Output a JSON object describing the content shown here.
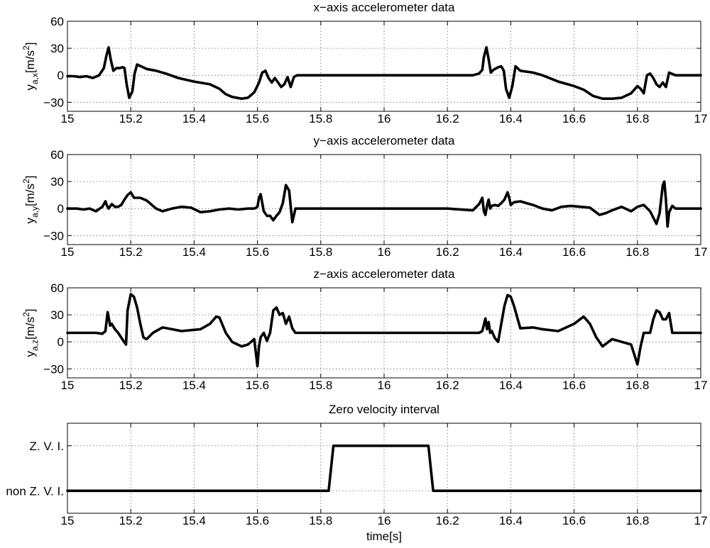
{
  "chart_data": [
    {
      "type": "line",
      "title": "x−axis accelerometer data",
      "ylabel_main": "y",
      "ylabel_sub": "a,x",
      "ylabel_unit": "[m/s",
      "ylabel_exp": "2",
      "ylabel_close": "]",
      "xlim": [
        15,
        17
      ],
      "ylim": [
        -40,
        60
      ],
      "grid": true,
      "xticks": [
        15,
        15.2,
        15.4,
        15.6,
        15.8,
        16,
        16.2,
        16.4,
        16.6,
        16.8,
        17
      ],
      "xtick_labels": [
        "15",
        "15.2",
        "15.4",
        "15.6",
        "15.8",
        "16",
        "16.2",
        "16.4",
        "16.6",
        "16.8",
        "17"
      ],
      "yticks": [
        -30,
        0,
        30,
        60
      ],
      "ytick_labels": [
        "−30",
        "0",
        "30",
        "60"
      ],
      "series": [
        {
          "x": [
            15,
            15.02,
            15.04,
            15.06,
            15.08,
            15.1,
            15.115,
            15.123,
            15.13,
            15.137,
            15.145,
            15.155,
            15.165,
            15.175,
            15.18,
            15.187,
            15.195,
            15.205,
            15.212,
            15.22,
            15.25,
            15.28,
            15.31,
            15.35,
            15.4,
            15.45,
            15.48,
            15.5,
            15.52,
            15.55,
            15.57,
            15.59,
            15.605,
            15.615,
            15.625,
            15.635,
            15.645,
            15.655,
            15.665,
            15.675,
            15.685,
            15.695,
            15.705,
            15.715,
            15.725,
            15.75,
            15.8,
            15.9,
            16,
            16.1,
            16.2,
            16.28,
            16.3,
            16.31,
            16.315,
            16.323,
            16.33,
            16.337,
            16.345,
            16.36,
            16.37,
            16.378,
            16.385,
            16.395,
            16.405,
            16.415,
            16.43,
            16.47,
            16.5,
            16.55,
            16.6,
            16.63,
            16.66,
            16.69,
            16.72,
            16.75,
            16.78,
            16.8,
            16.81,
            16.82,
            16.83,
            16.84,
            16.85,
            16.86,
            16.87,
            16.88,
            16.89,
            16.9,
            16.92,
            16.95,
            17
          ],
          "y": [
            -1,
            -1,
            -2,
            -1,
            -3,
            0,
            8,
            22,
            31,
            17,
            5,
            8,
            8,
            9,
            8,
            -10,
            -25,
            -18,
            2,
            12,
            7,
            5,
            2,
            -3,
            -7,
            -10,
            -15,
            -21,
            -24,
            -26,
            -25,
            -19,
            -8,
            3,
            5,
            -3,
            -8,
            -3,
            -8,
            -13,
            -10,
            -2,
            -13,
            -2,
            0,
            0,
            0,
            0,
            0,
            0,
            0,
            0,
            2,
            6,
            20,
            31,
            18,
            3,
            6,
            9,
            10,
            5,
            -15,
            -25,
            -12,
            10,
            5,
            3,
            0,
            -7,
            -12,
            -16,
            -23,
            -26,
            -26,
            -25,
            -20,
            -12,
            -15,
            -20,
            0,
            2,
            -3,
            -10,
            -13,
            -8,
            -13,
            3,
            0,
            0,
            0
          ]
        }
      ]
    },
    {
      "type": "line",
      "title": "y−axis accelerometer data",
      "ylabel_main": "y",
      "ylabel_sub": "a,y",
      "ylabel_unit": "[m/s",
      "ylabel_exp": "2",
      "ylabel_close": "]",
      "xlim": [
        15,
        17
      ],
      "ylim": [
        -40,
        60
      ],
      "grid": true,
      "xticks": [
        15,
        15.2,
        15.4,
        15.6,
        15.8,
        16,
        16.2,
        16.4,
        16.6,
        16.8,
        17
      ],
      "xtick_labels": [
        "15",
        "15.2",
        "15.4",
        "15.6",
        "15.8",
        "16",
        "16.2",
        "16.4",
        "16.6",
        "16.8",
        "17"
      ],
      "yticks": [
        -30,
        0,
        30,
        60
      ],
      "ytick_labels": [
        "−30",
        "0",
        "30",
        "60"
      ],
      "series": [
        {
          "x": [
            15,
            15.03,
            15.05,
            15.07,
            15.09,
            15.11,
            15.12,
            15.125,
            15.13,
            15.14,
            15.15,
            15.16,
            15.17,
            15.18,
            15.19,
            15.2,
            15.21,
            15.23,
            15.25,
            15.28,
            15.3,
            15.33,
            15.36,
            15.39,
            15.42,
            15.45,
            15.48,
            15.51,
            15.54,
            15.57,
            15.59,
            15.6,
            15.605,
            15.61,
            15.62,
            15.63,
            15.64,
            15.65,
            15.66,
            15.67,
            15.68,
            15.69,
            15.7,
            15.71,
            15.72,
            15.73,
            15.75,
            15.8,
            15.9,
            16,
            16.1,
            16.2,
            16.28,
            16.3,
            16.31,
            16.315,
            16.32,
            16.325,
            16.33,
            16.335,
            16.34,
            16.35,
            16.36,
            16.37,
            16.38,
            16.39,
            16.395,
            16.4,
            16.41,
            16.43,
            16.47,
            16.5,
            16.53,
            16.56,
            16.59,
            16.62,
            16.65,
            16.68,
            16.7,
            16.72,
            16.75,
            16.78,
            16.8,
            16.82,
            16.84,
            16.86,
            16.87,
            16.88,
            16.885,
            16.89,
            16.895,
            16.9,
            16.91,
            16.92,
            16.95,
            17
          ],
          "y": [
            0,
            0,
            -1,
            0,
            -3,
            2,
            8,
            3,
            0,
            5,
            2,
            2,
            4,
            10,
            15,
            18,
            12,
            12,
            9,
            0,
            -3,
            0,
            2,
            1,
            -4,
            -3,
            -1,
            0,
            -1,
            0,
            0,
            2,
            12,
            16,
            -3,
            -8,
            -8,
            -13,
            -8,
            -4,
            6,
            26,
            20,
            -15,
            0,
            0,
            0,
            0,
            0,
            0,
            0,
            0,
            -2,
            5,
            12,
            -3,
            -7,
            3,
            10,
            0,
            3,
            4,
            3,
            6,
            10,
            18,
            12,
            4,
            7,
            8,
            4,
            0,
            -2,
            2,
            3,
            2,
            1,
            -7,
            -5,
            -2,
            2,
            -3,
            2,
            4,
            -3,
            -17,
            -5,
            26,
            30,
            10,
            -20,
            -4,
            3,
            0,
            0,
            0
          ]
        }
      ]
    },
    {
      "type": "line",
      "title": "z−axis accelerometer data",
      "ylabel_main": "y",
      "ylabel_sub": "a,z",
      "ylabel_unit": "[m/s",
      "ylabel_exp": "2",
      "ylabel_close": "]",
      "xlim": [
        15,
        17
      ],
      "ylim": [
        -40,
        60
      ],
      "grid": true,
      "xticks": [
        15,
        15.2,
        15.4,
        15.6,
        15.8,
        16,
        16.2,
        16.4,
        16.6,
        16.8,
        17
      ],
      "xtick_labels": [
        "15",
        "15.2",
        "15.4",
        "15.6",
        "15.8",
        "16",
        "16.2",
        "16.4",
        "16.6",
        "16.8",
        "17"
      ],
      "yticks": [
        -30,
        0,
        30,
        60
      ],
      "ytick_labels": [
        "−30",
        "0",
        "30",
        "60"
      ],
      "series": [
        {
          "x": [
            15,
            15.03,
            15.06,
            15.09,
            15.11,
            15.12,
            15.127,
            15.135,
            15.14,
            15.15,
            15.16,
            15.175,
            15.185,
            15.19,
            15.2,
            15.21,
            15.22,
            15.23,
            15.24,
            15.25,
            15.27,
            15.3,
            15.33,
            15.36,
            15.39,
            15.42,
            15.45,
            15.47,
            15.48,
            15.5,
            15.52,
            15.55,
            15.57,
            15.59,
            15.6,
            15.605,
            15.61,
            15.62,
            15.63,
            15.64,
            15.65,
            15.66,
            15.67,
            15.68,
            15.69,
            15.7,
            15.71,
            15.72,
            15.73,
            15.75,
            15.8,
            15.9,
            16,
            16.1,
            16.2,
            16.28,
            16.3,
            16.31,
            16.32,
            16.325,
            16.33,
            16.335,
            16.34,
            16.35,
            16.36,
            16.37,
            16.38,
            16.39,
            16.4,
            16.41,
            16.43,
            16.47,
            16.5,
            16.55,
            16.6,
            16.63,
            16.65,
            16.67,
            16.69,
            16.72,
            16.75,
            16.78,
            16.8,
            16.81,
            16.82,
            16.83,
            16.84,
            16.85,
            16.86,
            16.87,
            16.88,
            16.89,
            16.9,
            16.91,
            16.95,
            17
          ],
          "y": [
            10,
            10,
            10,
            10,
            9,
            12,
            33,
            18,
            20,
            14,
            10,
            2,
            -3,
            35,
            53,
            50,
            38,
            20,
            5,
            3,
            10,
            16,
            14,
            12,
            13,
            14,
            20,
            28,
            27,
            10,
            0,
            -5,
            -3,
            3,
            -27,
            -5,
            5,
            10,
            1,
            10,
            35,
            38,
            30,
            32,
            20,
            28,
            15,
            10,
            10,
            10,
            10,
            10,
            10,
            10,
            10,
            10,
            10,
            12,
            26,
            14,
            22,
            10,
            12,
            4,
            0,
            20,
            40,
            52,
            50,
            40,
            15,
            16,
            14,
            12,
            20,
            28,
            20,
            5,
            -5,
            3,
            0,
            -3,
            -25,
            -5,
            10,
            10,
            10,
            25,
            35,
            33,
            25,
            25,
            32,
            10,
            10,
            10
          ]
        }
      ]
    },
    {
      "type": "line",
      "title": "Zero velocity interval",
      "xlabel": "time[s]",
      "xlim": [
        15,
        17
      ],
      "ylim": [
        0,
        1
      ],
      "grid": true,
      "xticks": [
        15,
        15.2,
        15.4,
        15.6,
        15.8,
        16,
        16.2,
        16.4,
        16.6,
        16.8,
        17
      ],
      "xtick_labels": [
        "15",
        "15.2",
        "15.4",
        "15.6",
        "15.8",
        "16",
        "16.2",
        "16.4",
        "16.6",
        "16.8",
        "17"
      ],
      "yticks": [
        0.25,
        0.75
      ],
      "ytick_labels": [
        "non Z. V. I.",
        "Z. V. I."
      ],
      "series": [
        {
          "x": [
            15,
            15.825,
            15.84,
            16.14,
            16.155,
            17
          ],
          "y": [
            0.25,
            0.25,
            0.75,
            0.75,
            0.25,
            0.25
          ]
        }
      ]
    }
  ]
}
